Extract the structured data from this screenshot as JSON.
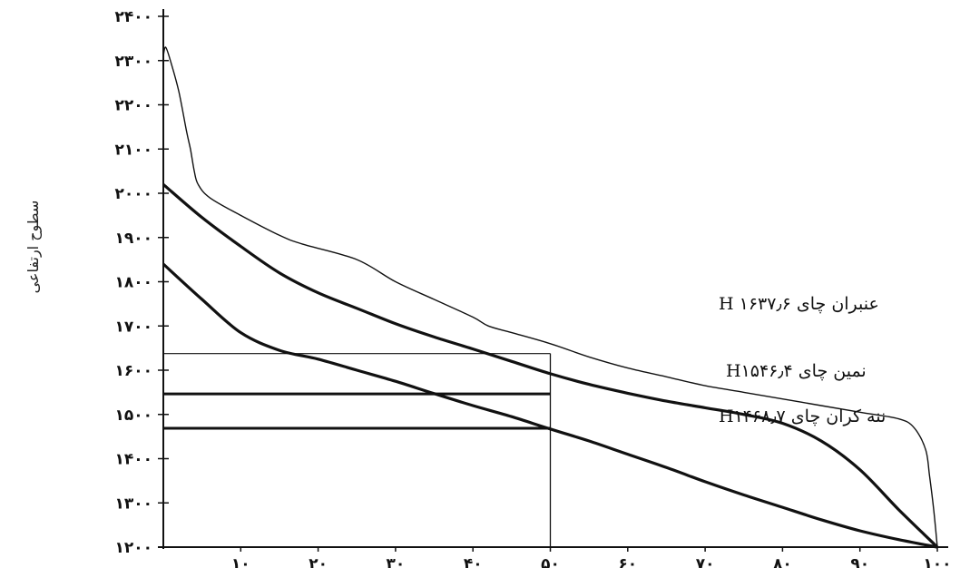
{
  "chart_data": {
    "type": "line",
    "title": "",
    "xlabel": "",
    "ylabel": "سطوح ارتفاعی",
    "xlim": [
      0,
      100
    ],
    "ylim": [
      1200,
      2400
    ],
    "grid": false,
    "x_ticks": [
      10,
      20,
      30,
      40,
      50,
      60,
      70,
      80,
      90,
      100
    ],
    "x_tick_labels": [
      "۱۰",
      "۲۰",
      "۳۰",
      "۴۰",
      "۵۰",
      "۶۰",
      "۷۰",
      "۸۰",
      "۹۰",
      "۱۰۰"
    ],
    "y_ticks": [
      1200,
      1300,
      1400,
      1500,
      1600,
      1700,
      1800,
      1900,
      2000,
      2100,
      2200,
      2300,
      2400
    ],
    "y_tick_labels": [
      "۱۲۰۰",
      "۱۳۰۰",
      "۱۴۰۰",
      "۱۵۰۰",
      "۱۶۰۰",
      "۱۷۰۰",
      "۱۸۰۰",
      "۱۹۰۰",
      "۲۰۰۰",
      "۲۱۰۰",
      "۲۲۰۰",
      "۲۳۰۰",
      "۲۴۰۰"
    ],
    "series": [
      {
        "style": "thin",
        "points": [
          [
            0,
            2310
          ],
          [
            0.3,
            2330
          ],
          [
            1,
            2295
          ],
          [
            2,
            2230
          ],
          [
            3,
            2140
          ],
          [
            3.5,
            2100
          ],
          [
            4,
            2050
          ],
          [
            4.5,
            2020
          ],
          [
            6,
            1990
          ],
          [
            10,
            1950
          ],
          [
            15,
            1905
          ],
          [
            18,
            1885
          ],
          [
            25,
            1850
          ],
          [
            30,
            1800
          ],
          [
            35,
            1760
          ],
          [
            40,
            1720
          ],
          [
            42,
            1700
          ],
          [
            45,
            1685
          ],
          [
            50,
            1660
          ],
          [
            55,
            1630
          ],
          [
            60,
            1605
          ],
          [
            65,
            1585
          ],
          [
            70,
            1565
          ],
          [
            75,
            1550
          ],
          [
            80,
            1535
          ],
          [
            85,
            1520
          ],
          [
            90,
            1505
          ],
          [
            95,
            1490
          ],
          [
            97,
            1470
          ],
          [
            98.5,
            1420
          ],
          [
            99,
            1360
          ],
          [
            99.5,
            1290
          ],
          [
            100,
            1200
          ]
        ]
      },
      {
        "style": "thick",
        "points": [
          [
            0,
            2020
          ],
          [
            5,
            1945
          ],
          [
            10,
            1880
          ],
          [
            15,
            1820
          ],
          [
            20,
            1775
          ],
          [
            25,
            1740
          ],
          [
            30,
            1705
          ],
          [
            35,
            1675
          ],
          [
            40,
            1648
          ],
          [
            45,
            1620
          ],
          [
            50,
            1592
          ],
          [
            55,
            1568
          ],
          [
            60,
            1548
          ],
          [
            65,
            1530
          ],
          [
            70,
            1515
          ],
          [
            75,
            1500
          ],
          [
            80,
            1480
          ],
          [
            85,
            1440
          ],
          [
            90,
            1375
          ],
          [
            95,
            1285
          ],
          [
            100,
            1200
          ]
        ]
      },
      {
        "style": "thick",
        "points": [
          [
            0,
            1840
          ],
          [
            5,
            1760
          ],
          [
            10,
            1685
          ],
          [
            15,
            1645
          ],
          [
            20,
            1625
          ],
          [
            25,
            1600
          ],
          [
            30,
            1575
          ],
          [
            35,
            1547
          ],
          [
            40,
            1520
          ],
          [
            45,
            1495
          ],
          [
            50,
            1467
          ],
          [
            55,
            1440
          ],
          [
            60,
            1410
          ],
          [
            65,
            1380
          ],
          [
            70,
            1348
          ],
          [
            75,
            1318
          ],
          [
            80,
            1290
          ],
          [
            85,
            1262
          ],
          [
            90,
            1237
          ],
          [
            95,
            1217
          ],
          [
            100,
            1200
          ]
        ]
      }
    ],
    "mean_lines": [
      {
        "label": "عنبران چای  ۱۶۳۷٫۶  H",
        "value": 1637.6
      },
      {
        "label": "نمین چای H۱۵۴۶٫۴",
        "value": 1546.4
      },
      {
        "label": "ننه کران چای  H۱۴۶۸٫۷",
        "value": 1468.7
      }
    ],
    "vertical_line_x": 50
  }
}
